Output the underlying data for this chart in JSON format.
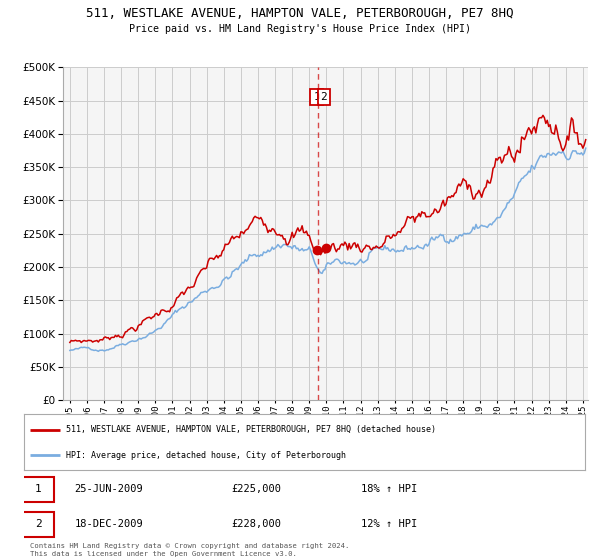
{
  "title": "511, WESTLAKE AVENUE, HAMPTON VALE, PETERBOROUGH, PE7 8HQ",
  "subtitle": "Price paid vs. HM Land Registry's House Price Index (HPI)",
  "legend_line1": "511, WESTLAKE AVENUE, HAMPTON VALE, PETERBOROUGH, PE7 8HQ (detached house)",
  "legend_line2": "HPI: Average price, detached house, City of Peterborough",
  "table_rows": [
    {
      "num": "1",
      "date": "25-JUN-2009",
      "price": "£225,000",
      "hpi": "18% ↑ HPI"
    },
    {
      "num": "2",
      "date": "18-DEC-2009",
      "price": "£228,000",
      "hpi": "12% ↑ HPI"
    }
  ],
  "footer_line1": "Contains HM Land Registry data © Crown copyright and database right 2024.",
  "footer_line2": "This data is licensed under the Open Government Licence v3.0.",
  "vline_x": 2009.5,
  "marker1_x": 2009.48,
  "marker1_y": 225000,
  "marker2_x": 2009.96,
  "marker2_y": 228000,
  "red_color": "#cc0000",
  "blue_color": "#7aade0",
  "ylim": [
    0,
    500000
  ],
  "xlim_start": 1994.6,
  "xlim_end": 2025.3,
  "bg_color": "#ffffff",
  "grid_color": "#cccccc",
  "plot_bg": "#f5f5f5"
}
